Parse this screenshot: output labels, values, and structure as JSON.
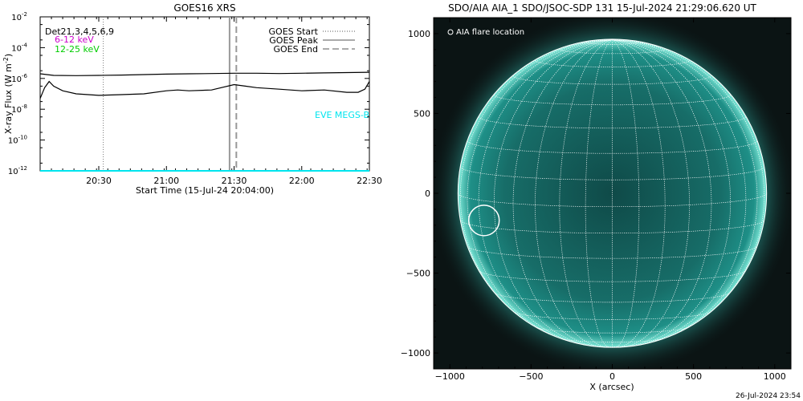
{
  "footer": {
    "timestamp": "26-Jul-2024 23:54"
  },
  "chart_data": [
    {
      "type": "line",
      "title": "GOES16 XRS",
      "ylabel": "X-ray Flux (W m",
      "ylabel_sup": "-2",
      "ylabel_close": ")",
      "xlabel": "Start Time (15-Jul-24 20:04:00)",
      "y_log": true,
      "ylim_exp": [
        -12,
        -2
      ],
      "y_ticks": [
        {
          "mant": "10",
          "exp": "-2",
          "e": -2
        },
        {
          "mant": "10",
          "exp": "-4",
          "e": -4
        },
        {
          "mant": "10",
          "exp": "-6",
          "e": -6
        },
        {
          "mant": "10",
          "exp": "-8",
          "e": -8
        },
        {
          "mant": "10",
          "exp": "-10",
          "e": -10
        },
        {
          "mant": "10",
          "exp": "-12",
          "e": -12
        }
      ],
      "x_range": [
        "20:04",
        "22:30"
      ],
      "x_ticks": [
        "20:30",
        "21:00",
        "21:30",
        "22:00",
        "22:30"
      ],
      "channels": [
        {
          "label": "Det21,3,4,5,6,9",
          "color": "#000000"
        },
        {
          "label": "6-12 keV",
          "color": "#cc00cc"
        },
        {
          "label": "12-25 keV",
          "color": "#00cc00"
        }
      ],
      "legend": [
        {
          "label": "GOES Start",
          "style": "dotted"
        },
        {
          "label": "GOES Peak",
          "style": "solid"
        },
        {
          "label": "GOES End",
          "style": "dashed"
        }
      ],
      "annotation": {
        "text": "EVE MEGS-B",
        "color": "#00e5ee"
      },
      "markers": {
        "start": "20:32",
        "peak": "21:28",
        "end": "21:31"
      },
      "series": [
        {
          "color": "#000000",
          "x": [
            "20:04",
            "20:10",
            "20:20",
            "20:30",
            "20:40",
            "20:50",
            "21:00",
            "21:10",
            "21:20",
            "21:30",
            "21:40",
            "21:50",
            "22:00",
            "22:10",
            "22:20",
            "22:30"
          ],
          "log_values": [
            -5.7,
            -5.8,
            -5.82,
            -5.8,
            -5.78,
            -5.75,
            -5.72,
            -5.7,
            -5.68,
            -5.66,
            -5.66,
            -5.68,
            -5.66,
            -5.64,
            -5.62,
            -5.6
          ]
        },
        {
          "color": "#000000",
          "x": [
            "20:04",
            "20:06",
            "20:08",
            "20:10",
            "20:14",
            "20:20",
            "20:30",
            "20:40",
            "20:50",
            "21:00",
            "21:05",
            "21:10",
            "21:20",
            "21:30",
            "21:35",
            "21:40",
            "21:50",
            "22:00",
            "22:10",
            "22:20",
            "22:25",
            "22:28",
            "22:30"
          ],
          "log_values": [
            -7.3,
            -6.6,
            -6.2,
            -6.5,
            -6.8,
            -7.0,
            -7.1,
            -7.05,
            -7.0,
            -6.8,
            -6.75,
            -6.8,
            -6.75,
            -6.4,
            -6.5,
            -6.6,
            -6.7,
            -6.8,
            -6.75,
            -6.9,
            -6.9,
            -6.7,
            -6.2
          ]
        },
        {
          "color": "#00e5ee",
          "x": [
            "20:04",
            "22:30"
          ],
          "log_values": [
            -12.0,
            -12.0
          ]
        }
      ]
    },
    {
      "type": "image",
      "title": "SDO/AIA AIA_1 SDO/JSOC-SDP 131 15-Jul-2024 21:29:06.620 UT",
      "xlabel": "X (arcsec)",
      "xlim": [
        -1100,
        1100
      ],
      "ylim": [
        -1100,
        1100
      ],
      "x_ticks": [
        -1000,
        -500,
        0,
        500,
        1000
      ],
      "y_ticks": [
        1000,
        500,
        0,
        -500,
        -1000
      ],
      "legend": {
        "label": "AIA flare location",
        "marker": "circle"
      },
      "solar_radius_arcsec": 950,
      "flare_location": {
        "x": -790,
        "y": -170
      },
      "disk_color": "#1e8f87"
    }
  ]
}
